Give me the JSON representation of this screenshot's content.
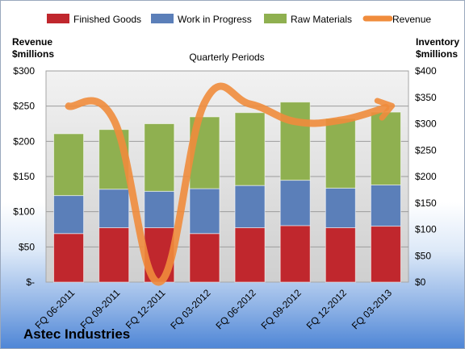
{
  "company": "Astec Industries",
  "chart_data": {
    "type": "bar",
    "stacked": true,
    "title": "Quarterly Periods",
    "categories": [
      "FQ 06-2011",
      "FQ 09-2011",
      "FQ 12-2011",
      "FQ 03-2012",
      "FQ 06-2012",
      "FQ 09-2012",
      "FQ 12-2012",
      "FQ 03-2013"
    ],
    "left_axis": {
      "label_line1": "Revenue",
      "label_line2": "$millions",
      "range": [
        0,
        300
      ],
      "ticks": [
        "$-",
        "$50",
        "$100",
        "$150",
        "$200",
        "$250",
        "$300"
      ]
    },
    "right_axis": {
      "label_line1": "Inventory",
      "label_line2": "$millions",
      "range": [
        0,
        400
      ],
      "ticks": [
        "$0",
        "$50",
        "$100",
        "$150",
        "$200",
        "$250",
        "$300",
        "$350",
        "$400"
      ]
    },
    "series": [
      {
        "name": "Finished Goods",
        "axis": "right",
        "color": "#c0272d",
        "values": [
          92,
          103,
          103,
          92,
          103,
          107,
          103,
          106
        ]
      },
      {
        "name": "Work in Progress",
        "axis": "right",
        "color": "#5b7fb9",
        "values": [
          72,
          73,
          69,
          85,
          80,
          86,
          75,
          78
        ]
      },
      {
        "name": "Raw Materials",
        "axis": "right",
        "color": "#8fb050",
        "values": [
          117,
          113,
          128,
          136,
          138,
          148,
          132,
          138
        ]
      },
      {
        "name": "Revenue",
        "axis": "left",
        "type": "line",
        "color": "#f08c3c",
        "values": [
          250,
          230,
          0,
          255,
          253,
          228,
          230,
          248
        ]
      }
    ],
    "grid": true,
    "legend": "top"
  }
}
